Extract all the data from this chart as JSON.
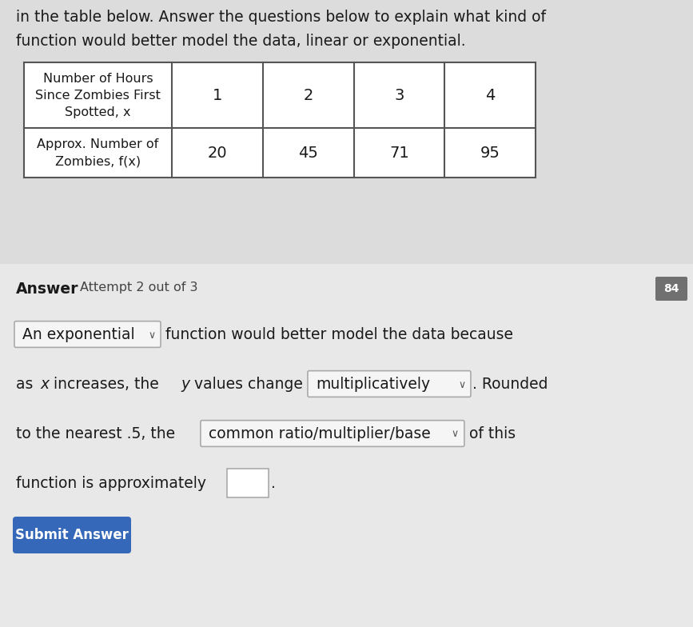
{
  "bg_top": "#e8e8e8",
  "bg_answer": "#ebebeb",
  "table_bg": "#ffffff",
  "table_border": "#555555",
  "header_text_line1": "in the table below. Answer the questions below to explain what kind of",
  "header_text_line2": "function would better model the data, linear or exponential.",
  "table_row1_label": "Number of Hours\nSince Zombies First\nSpotted, x",
  "table_row2_label": "Approx. Number of\nZombies, f(x)",
  "table_x_values": [
    "1",
    "2",
    "3",
    "4"
  ],
  "table_y_values": [
    "20",
    "45",
    "71",
    "95"
  ],
  "answer_label": "Answer",
  "attempt_text": "Attempt 2 out of 3",
  "line1_dropdown": "An exponential",
  "line1_suffix": "function would better model the data because",
  "line2_pre_x": "as ",
  "line2_x": "x",
  "line2_post_x": " increases, the ",
  "line2_y": "y",
  "line2_post_y": " values change",
  "line2_dropdown": "multiplicatively",
  "line2_suffix": ". Rounded",
  "line3_prefix": "to the nearest .5, the",
  "line3_dropdown": "common ratio/multiplier/base",
  "line3_suffix": "of this",
  "line4_prefix": "function is approximately",
  "submit_text": "Submit Answer",
  "submit_bg": "#3568b8",
  "text_color": "#1a1a1a",
  "hint_icon_bg": "#707070",
  "hint_icon_text": "84",
  "dropdown_bg": "#f5f5f5",
  "dropdown_border": "#aaaaaa",
  "input_bg": "#ffffff",
  "input_border": "#aaaaaa"
}
